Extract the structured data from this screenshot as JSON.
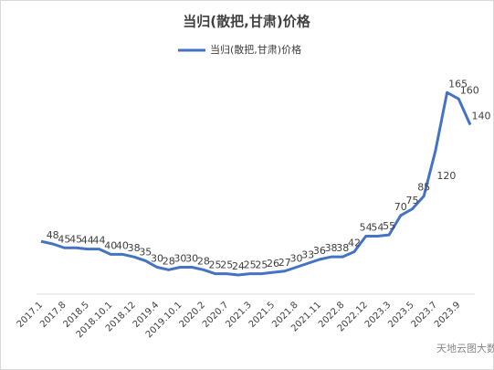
{
  "chart_data": {
    "type": "line",
    "title": "当归(散把,甘肃)价格",
    "categories": [
      "2017.1",
      null,
      "2017.8",
      null,
      "2018.5",
      null,
      "2018.10.1",
      null,
      "2018.12",
      null,
      "2019.4",
      null,
      "2019.10.1",
      null,
      "2020.2",
      null,
      "2020.7",
      null,
      "2021.3",
      null,
      "2021.5",
      null,
      "2021.8",
      null,
      "2021.11",
      null,
      "2022.8",
      null,
      "2022.12",
      null,
      "2023.3",
      null,
      "2023.5",
      null,
      "2023.7",
      null,
      "2023.9",
      null
    ],
    "series": [
      {
        "name": "当归(散把,甘肃)价格",
        "color": "#4472c4",
        "values": [
          50,
          48,
          45,
          45,
          44,
          44,
          40,
          40,
          38,
          35,
          30,
          28,
          30,
          30,
          28,
          25,
          25,
          24,
          25,
          25,
          26,
          27,
          30,
          33,
          36,
          38,
          38,
          42,
          54,
          54,
          55,
          70,
          75,
          85,
          120,
          165,
          160,
          140
        ],
        "value_labels": [
          null,
          "48",
          "45",
          "45",
          "44",
          "44",
          "40",
          "40",
          "38",
          "35",
          "30",
          "28",
          "30",
          "30",
          "28",
          "25",
          "25",
          "24",
          "25",
          "25",
          "26",
          "27",
          "30",
          "33",
          "36",
          "38",
          "38",
          "42",
          "54",
          "54",
          "55",
          "70",
          "75",
          "85",
          "120",
          "165",
          "160",
          "140"
        ]
      }
    ],
    "ylim": [
      0,
      180
    ],
    "legend": "top",
    "watermark": "天地云图大数据"
  }
}
